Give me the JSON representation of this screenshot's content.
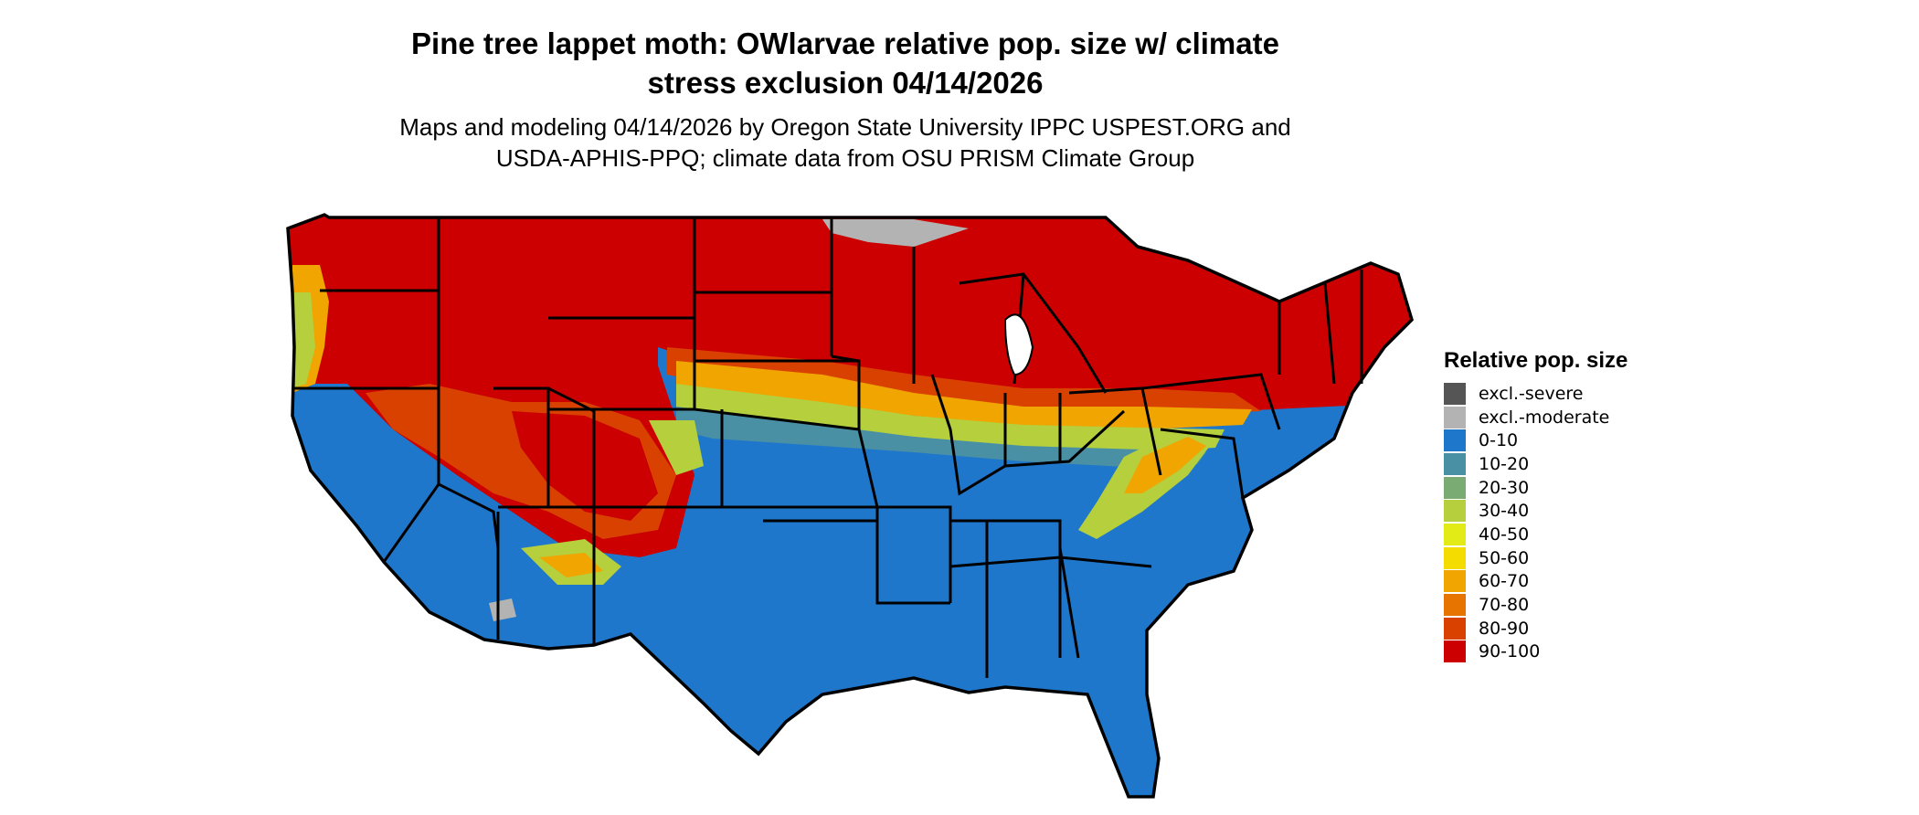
{
  "title_line1": "Pine tree lappet moth: OWlarvae relative pop. size w/ climate",
  "title_line2": "stress exclusion 04/14/2026",
  "subtitle_line1": "Maps and modeling 04/14/2026 by Oregon State University IPPC USPEST.ORG and",
  "subtitle_line2": "USDA-APHIS-PPQ; climate data from OSU PRISM Climate Group",
  "legend": {
    "title": "Relative pop. size",
    "items": [
      {
        "label": "excl.-severe",
        "color": "#555555"
      },
      {
        "label": "excl.-moderate",
        "color": "#b3b3b3"
      },
      {
        "label": "0-10",
        "color": "#1f77cc"
      },
      {
        "label": "10-20",
        "color": "#4a90a4"
      },
      {
        "label": "20-30",
        "color": "#7aab72"
      },
      {
        "label": "30-40",
        "color": "#b5cf3d"
      },
      {
        "label": "40-50",
        "color": "#e3eb16"
      },
      {
        "label": "50-60",
        "color": "#f5dc00"
      },
      {
        "label": "60-70",
        "color": "#f0a500"
      },
      {
        "label": "70-80",
        "color": "#e87400"
      },
      {
        "label": "80-90",
        "color": "#d94100"
      },
      {
        "label": "90-100",
        "color": "#cc0000"
      }
    ]
  }
}
